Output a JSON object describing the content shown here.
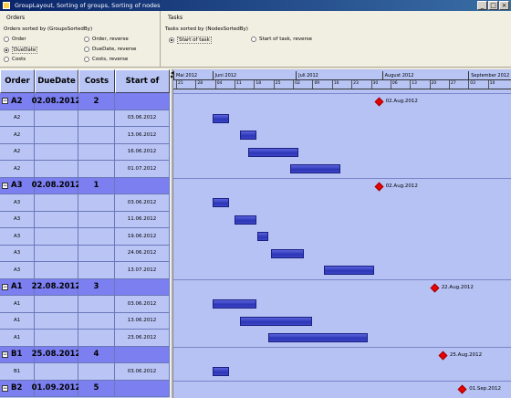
{
  "window": {
    "title": "GroupLayout, Sorting of groups, Sorting of nodes",
    "min": "_",
    "max": "□",
    "close": "×"
  },
  "orders_panel": {
    "title": "Orders",
    "subtitle": "Orders sorted by (GroupsSortedBy)",
    "options": [
      {
        "label": "Order",
        "selected": false
      },
      {
        "label": "Order, reverse",
        "selected": false
      },
      {
        "label": "DueDate",
        "selected": true
      },
      {
        "label": "DueDate, reverse",
        "selected": false
      },
      {
        "label": "Costs",
        "selected": false
      },
      {
        "label": "Costs, reverse",
        "selected": false
      }
    ]
  },
  "tasks_panel": {
    "title": "Tasks",
    "subtitle": "Tasks sorted by (NodesSortedBy)",
    "options": [
      {
        "label": "Start of task",
        "selected": true
      },
      {
        "label": "Start of task, reverse",
        "selected": false
      }
    ]
  },
  "table": {
    "headers": [
      "Order",
      "DueDate",
      "Costs",
      "Start of task"
    ],
    "groups": [
      {
        "order": "A2",
        "due": "02.08.2012",
        "costs": "2",
        "milestone_label": "02.Aug.2012",
        "nodes": [
          {
            "name": "A2",
            "start": "03.06.2012"
          },
          {
            "name": "A2",
            "start": "13.06.2012"
          },
          {
            "name": "A2",
            "start": "16.06.2012"
          },
          {
            "name": "A2",
            "start": "01.07.2012"
          }
        ]
      },
      {
        "order": "A3",
        "due": "02.08.2012",
        "costs": "1",
        "milestone_label": "02.Aug.2012",
        "nodes": [
          {
            "name": "A3",
            "start": "03.06.2012"
          },
          {
            "name": "A3",
            "start": "11.06.2012"
          },
          {
            "name": "A3",
            "start": "19.06.2012"
          },
          {
            "name": "A3",
            "start": "24.06.2012"
          },
          {
            "name": "A3",
            "start": "13.07.2012"
          }
        ]
      },
      {
        "order": "A1",
        "due": "22.08.2012",
        "costs": "3",
        "milestone_label": "22.Aug.2012",
        "nodes": [
          {
            "name": "A1",
            "start": "03.06.2012"
          },
          {
            "name": "A1",
            "start": "13.06.2012"
          },
          {
            "name": "A1",
            "start": "23.06.2012"
          }
        ]
      },
      {
        "order": "B1",
        "due": "25.08.2012",
        "costs": "4",
        "milestone_label": "25.Aug.2012",
        "nodes": [
          {
            "name": "B1",
            "start": "03.06.2012"
          }
        ]
      },
      {
        "order": "B2",
        "due": "01.09.2012",
        "costs": "5",
        "milestone_label": "01.Sep.2012",
        "nodes": []
      }
    ]
  },
  "timeline": {
    "months": [
      "Mai 2012",
      "Juni 2012",
      "Juli 2012",
      "August 2012",
      "September 2012"
    ],
    "days": [
      "21",
      "28",
      "04",
      "11",
      "18",
      "25",
      "02",
      "09",
      "16",
      "23",
      "30",
      "06",
      "13",
      "20",
      "27",
      "03",
      "10"
    ]
  },
  "colors": {
    "group_row": "#7b7fef",
    "node_row": "#bac5f5",
    "bar": "#3c45c5",
    "milestone": "#e00000"
  }
}
